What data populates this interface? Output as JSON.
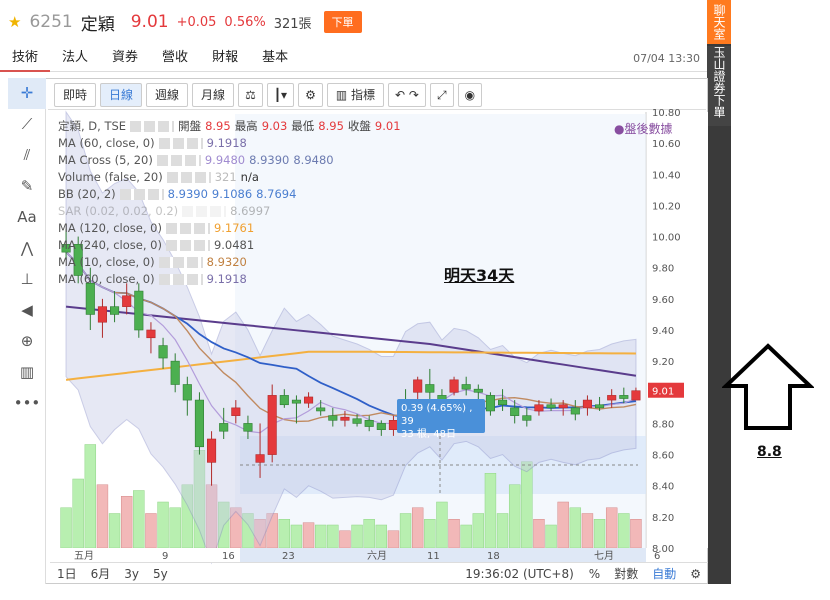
{
  "header": {
    "code": "6251",
    "name": "定穎",
    "price": "9.01",
    "change": "+0.05",
    "percent": "0.56%",
    "volume": "321張",
    "order_button": "下單"
  },
  "tabs": [
    {
      "label": "技術",
      "active": true
    },
    {
      "label": "法人"
    },
    {
      "label": "資券"
    },
    {
      "label": "營收"
    },
    {
      "label": "財報"
    },
    {
      "label": "基本"
    }
  ],
  "tab_time": "07/04 13:30",
  "side": {
    "chat": "聊天室",
    "bank": "玉山證券下單"
  },
  "toolbar": {
    "intraday": "即時",
    "daily": "日線",
    "weekly": "週線",
    "monthly": "月線",
    "indicators": "指標"
  },
  "indicators": {
    "main": {
      "name": "定穎, D, TSE",
      "open_label": "開盤",
      "open": "8.95",
      "high_label": "最高",
      "high": "9.03",
      "low_label": "最低",
      "low": "8.95",
      "close_label": "收盤",
      "close": "9.01"
    },
    "ma60a": {
      "name": "MA (60, close, 0)",
      "value": "9.1918"
    },
    "macross": {
      "name": "MA Cross (5, 20)",
      "v1": "9.9480",
      "v2": "8.9390",
      "v3": "8.9480"
    },
    "volume": {
      "name": "Volume (false, 20)",
      "v1": "321",
      "v2": "n/a"
    },
    "bb": {
      "name": "BB (20, 2)",
      "v1": "8.9390",
      "v2": "9.1086",
      "v3": "8.7694"
    },
    "sar": {
      "name": "SAR (0.02, 0.02, 0.2)",
      "value": "8.6997"
    },
    "ma120": {
      "name": "MA (120, close, 0)",
      "value": "9.1761"
    },
    "ma240": {
      "name": "MA (240, close, 0)",
      "value": "9.0481"
    },
    "ma10": {
      "name": "MA (10, close, 0)",
      "value": "8.9320"
    },
    "ma60b": {
      "name": "MA (60, close, 0)",
      "value": "9.1918"
    }
  },
  "after_hours": "●盤後數據",
  "annotation": "明天34天",
  "tooltip": {
    "line1": "0.39 (4.65%) , 39",
    "line2": "33 根, 48日"
  },
  "right_label": "8.8",
  "bottom": {
    "d1": "1日",
    "m6": "6月",
    "y3": "3y",
    "y5": "5y",
    "time": "19:36:02 (UTC+8)",
    "pct": "%",
    "log": "對數",
    "auto": "自動"
  },
  "chart_data": {
    "type": "candlestick",
    "ylim": [
      8.0,
      10.8
    ],
    "yticks": [
      "10.80",
      "10.60",
      "10.40",
      "10.20",
      "10.00",
      "9.80",
      "9.60",
      "9.40",
      "9.20",
      "9.01",
      "8.80",
      "8.60",
      "8.40",
      "8.20",
      "8.00"
    ],
    "xticks": [
      "五月",
      "9",
      "16",
      "23",
      "六月",
      "11",
      "18",
      "七月",
      "6"
    ],
    "last_price": "9.01",
    "candles": [
      {
        "o": 9.95,
        "h": 10.05,
        "l": 9.85,
        "c": 9.9
      },
      {
        "o": 9.95,
        "h": 10.0,
        "l": 9.7,
        "c": 9.75
      },
      {
        "o": 9.7,
        "h": 9.8,
        "l": 9.4,
        "c": 9.5
      },
      {
        "o": 9.45,
        "h": 9.6,
        "l": 9.35,
        "c": 9.55
      },
      {
        "o": 9.55,
        "h": 9.65,
        "l": 9.45,
        "c": 9.5
      },
      {
        "o": 9.55,
        "h": 9.7,
        "l": 9.5,
        "c": 9.62
      },
      {
        "o": 9.65,
        "h": 9.7,
        "l": 9.35,
        "c": 9.4
      },
      {
        "o": 9.35,
        "h": 9.45,
        "l": 9.25,
        "c": 9.4
      },
      {
        "o": 9.3,
        "h": 9.35,
        "l": 9.15,
        "c": 9.22
      },
      {
        "o": 9.2,
        "h": 9.25,
        "l": 9.0,
        "c": 9.05
      },
      {
        "o": 9.05,
        "h": 9.1,
        "l": 8.85,
        "c": 8.95
      },
      {
        "o": 8.95,
        "h": 9.0,
        "l": 8.6,
        "c": 8.65
      },
      {
        "o": 8.55,
        "h": 8.75,
        "l": 8.4,
        "c": 8.7
      },
      {
        "o": 8.8,
        "h": 8.9,
        "l": 8.7,
        "c": 8.75
      },
      {
        "o": 8.85,
        "h": 8.95,
        "l": 8.8,
        "c": 8.9
      },
      {
        "o": 8.8,
        "h": 8.85,
        "l": 8.7,
        "c": 8.75
      },
      {
        "o": 8.55,
        "h": 8.8,
        "l": 8.45,
        "c": 8.6
      },
      {
        "o": 8.6,
        "h": 9.05,
        "l": 8.55,
        "c": 8.98
      },
      {
        "o": 8.98,
        "h": 9.02,
        "l": 8.9,
        "c": 8.92
      },
      {
        "o": 8.95,
        "h": 8.98,
        "l": 8.8,
        "c": 8.93
      },
      {
        "o": 8.93,
        "h": 9.0,
        "l": 8.9,
        "c": 8.97
      },
      {
        "o": 8.9,
        "h": 8.95,
        "l": 8.85,
        "c": 8.88
      },
      {
        "o": 8.85,
        "h": 8.9,
        "l": 8.78,
        "c": 8.82
      },
      {
        "o": 8.82,
        "h": 8.88,
        "l": 8.78,
        "c": 8.84
      },
      {
        "o": 8.83,
        "h": 8.86,
        "l": 8.78,
        "c": 8.8
      },
      {
        "o": 8.82,
        "h": 8.85,
        "l": 8.75,
        "c": 8.78
      },
      {
        "o": 8.8,
        "h": 8.82,
        "l": 8.72,
        "c": 8.76
      },
      {
        "o": 8.76,
        "h": 8.85,
        "l": 8.72,
        "c": 8.82
      },
      {
        "o": 8.95,
        "h": 9.02,
        "l": 8.9,
        "c": 8.92
      },
      {
        "o": 9.0,
        "h": 9.1,
        "l": 8.95,
        "c": 9.08
      },
      {
        "o": 9.05,
        "h": 9.15,
        "l": 8.95,
        "c": 9.0
      },
      {
        "o": 8.98,
        "h": 9.02,
        "l": 8.88,
        "c": 8.9
      },
      {
        "o": 9.0,
        "h": 9.1,
        "l": 8.98,
        "c": 9.08
      },
      {
        "o": 9.05,
        "h": 9.1,
        "l": 8.98,
        "c": 9.02
      },
      {
        "o": 9.02,
        "h": 9.05,
        "l": 8.95,
        "c": 9.0
      },
      {
        "o": 8.98,
        "h": 9.0,
        "l": 8.85,
        "c": 8.88
      },
      {
        "o": 8.95,
        "h": 9.02,
        "l": 8.88,
        "c": 8.92
      },
      {
        "o": 8.9,
        "h": 8.95,
        "l": 8.8,
        "c": 8.85
      },
      {
        "o": 8.85,
        "h": 8.9,
        "l": 8.78,
        "c": 8.82
      },
      {
        "o": 8.88,
        "h": 8.95,
        "l": 8.85,
        "c": 8.92
      },
      {
        "o": 8.92,
        "h": 8.96,
        "l": 8.88,
        "c": 8.9
      },
      {
        "o": 8.9,
        "h": 8.95,
        "l": 8.85,
        "c": 8.92
      },
      {
        "o": 8.9,
        "h": 8.95,
        "l": 8.82,
        "c": 8.86
      },
      {
        "o": 8.9,
        "h": 8.98,
        "l": 8.85,
        "c": 8.95
      },
      {
        "o": 8.92,
        "h": 8.97,
        "l": 8.88,
        "c": 8.9
      },
      {
        "o": 8.95,
        "h": 9.02,
        "l": 8.9,
        "c": 8.98
      },
      {
        "o": 8.98,
        "h": 9.03,
        "l": 8.93,
        "c": 8.96
      },
      {
        "o": 8.95,
        "h": 9.03,
        "l": 8.95,
        "c": 9.01
      }
    ],
    "volumes": [
      0.35,
      0.6,
      0.9,
      0.55,
      0.3,
      0.45,
      0.5,
      0.3,
      0.4,
      0.35,
      0.55,
      0.85,
      0.55,
      0.4,
      0.35,
      0.3,
      0.25,
      0.3,
      0.25,
      0.2,
      0.22,
      0.2,
      0.2,
      0.15,
      0.2,
      0.25,
      0.2,
      0.15,
      0.3,
      0.35,
      0.25,
      0.4,
      0.25,
      0.2,
      0.3,
      0.65,
      0.3,
      0.55,
      0.75,
      0.25,
      0.2,
      0.4,
      0.35,
      0.3,
      0.25,
      0.35,
      0.3,
      0.25
    ]
  }
}
